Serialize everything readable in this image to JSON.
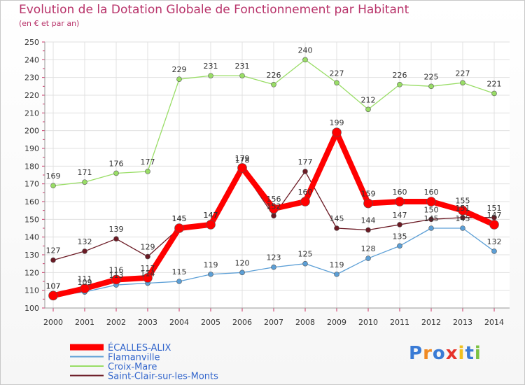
{
  "chart_data": {
    "type": "line",
    "title": "Evolution de la Dotation Globale de Fonctionnement par Habitant",
    "subtitle": "(en € et par an)",
    "xlabel": "",
    "ylabel": "",
    "x": [
      "2000",
      "2001",
      "2002",
      "2003",
      "2004",
      "2005",
      "2006",
      "2007",
      "2008",
      "2009",
      "2010",
      "2011",
      "2012",
      "2013",
      "2014"
    ],
    "ylim": [
      100,
      250
    ],
    "yticks": [
      100,
      110,
      120,
      130,
      140,
      150,
      160,
      170,
      180,
      190,
      200,
      210,
      220,
      230,
      240,
      250
    ],
    "grid": true,
    "legend_position": "bottom-left",
    "series": [
      {
        "name": "Saint-Clair-sur-les-Monts",
        "color": "#6b1a24",
        "values": [
          127,
          132,
          139,
          129,
          145,
          147,
          178,
          152,
          177,
          145,
          144,
          147,
          150,
          151,
          151
        ]
      },
      {
        "name": "Flamanville",
        "color": "#5c9fd6",
        "values": [
          107,
          109,
          113,
          114,
          115,
          119,
          120,
          123,
          125,
          119,
          128,
          135,
          145,
          145,
          132
        ]
      },
      {
        "name": "Croix-Mare",
        "color": "#99dd66",
        "values": [
          169,
          171,
          176,
          177,
          229,
          231,
          231,
          226,
          240,
          227,
          212,
          226,
          225,
          227,
          221
        ]
      },
      {
        "name": "ÉCALLES-ALIX",
        "color": "#ff0000",
        "values": [
          107,
          111,
          116,
          117,
          145,
          147,
          179,
          156,
          160,
          199,
          159,
          160,
          160,
          155,
          147
        ]
      }
    ],
    "legend": [
      "ÉCALLES-ALIX",
      "Flamanville",
      "Croix-Mare",
      "Saint-Clair-sur-les-Monts"
    ]
  },
  "logo": {
    "text": "Proxiti",
    "letters": [
      "P",
      "r",
      "o",
      "x",
      "i",
      "t",
      "i"
    ],
    "colors": [
      "#3a7bd5",
      "#f08a24",
      "#3a7bd5",
      "#e6332a",
      "#f0c020",
      "#3a7bd5",
      "#7cc242"
    ]
  }
}
